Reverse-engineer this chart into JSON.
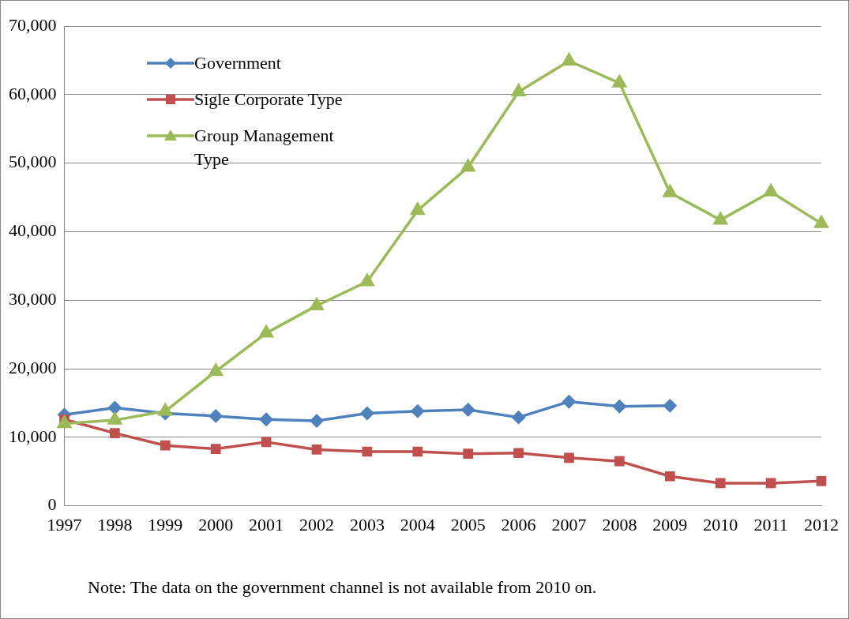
{
  "chart_data": {
    "type": "line",
    "categories": [
      "1997",
      "1998",
      "1999",
      "2000",
      "2001",
      "2002",
      "2003",
      "2004",
      "2005",
      "2006",
      "2007",
      "2008",
      "2009",
      "2010",
      "2011",
      "2012"
    ],
    "series": [
      {
        "name": "Government",
        "color": "#4f81bd",
        "marker": "diamond",
        "values": [
          13300,
          14300,
          13500,
          13100,
          12600,
          12400,
          13500,
          13800,
          14000,
          12900,
          15200,
          14500,
          14600,
          null,
          null,
          null
        ]
      },
      {
        "name": "Sigle Corporate Type",
        "color": "#c0504d",
        "marker": "square",
        "values": [
          12600,
          10600,
          8800,
          8300,
          9300,
          8200,
          7900,
          7900,
          7600,
          7700,
          7000,
          6500,
          4300,
          3300,
          3300,
          3600
        ]
      },
      {
        "name": "Group Management Type",
        "color": "#9bbb59",
        "marker": "triangle",
        "values": [
          12000,
          12500,
          13800,
          19600,
          25200,
          29200,
          32700,
          43100,
          49400,
          60400,
          64900,
          61700,
          45700,
          41700,
          45800,
          41200
        ]
      }
    ],
    "ylim": [
      0,
      70000
    ],
    "yticks": [
      0,
      {
        "value": 10000,
        "label": "10,000"
      },
      {
        "value": 20000,
        "label": "20,000"
      },
      {
        "value": 30000,
        "label": "30,000"
      },
      {
        "value": 40000,
        "label": "40,000"
      },
      {
        "value": 50000,
        "label": "50,000"
      },
      {
        "value": 60000,
        "label": "60,000"
      },
      {
        "value": 70000,
        "label": "70,000"
      }
    ],
    "grid": "y",
    "legend": "top left",
    "line_style": "solid",
    "annotations": [
      "Note: The data on the government channel is not available from 2010 on."
    ]
  }
}
